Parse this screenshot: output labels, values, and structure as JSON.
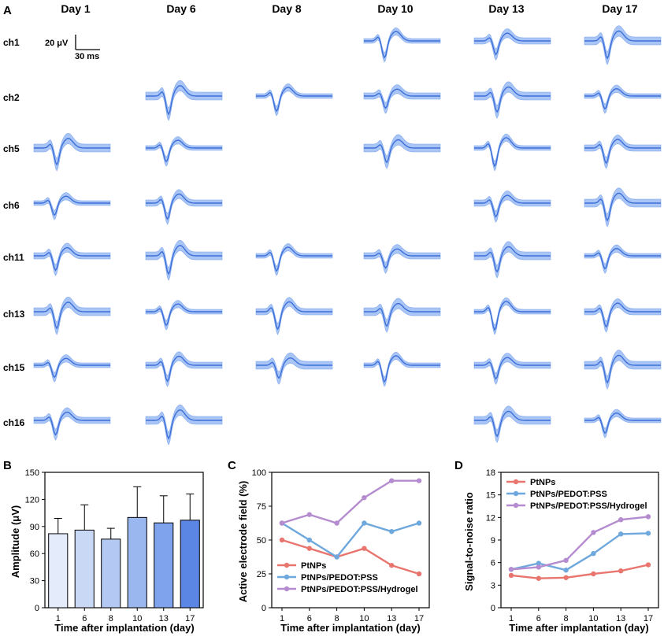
{
  "panel_letters": {
    "a": "A",
    "b": "B",
    "c": "C",
    "d": "D"
  },
  "colors": {
    "trace": "#3d6fd9",
    "band": "#a9c5f5",
    "band_edge": "#7ea6ee",
    "axis": "#000000",
    "pt": "#e9756f",
    "pedot": "#6fa8dc",
    "hydrogel": "#b48ccf",
    "bars": [
      "#e4ecfb",
      "#c9d8f5",
      "#b3c8f2",
      "#9ab7f0",
      "#7fa3ec",
      "#5b86e3"
    ]
  },
  "panel_a": {
    "days": [
      "Day 1",
      "Day 6",
      "Day 8",
      "Day 10",
      "Day 13",
      "Day 17"
    ],
    "channels": [
      "ch1",
      "ch2",
      "ch5",
      "ch6",
      "ch11",
      "ch13",
      "ch15",
      "ch16"
    ],
    "scalebar": {
      "amplitude_label": "20 μV",
      "time_label": "30 ms"
    },
    "waveforms": [
      [
        0,
        0,
        0,
        1,
        1,
        1
      ],
      [
        0,
        1,
        1,
        1,
        1,
        1
      ],
      [
        1,
        1,
        0,
        1,
        1,
        1
      ],
      [
        1,
        1,
        0,
        0,
        1,
        1
      ],
      [
        1,
        1,
        1,
        1,
        1,
        1
      ],
      [
        1,
        1,
        1,
        1,
        1,
        1
      ],
      [
        1,
        1,
        1,
        1,
        1,
        1
      ],
      [
        1,
        1,
        0,
        0,
        1,
        1
      ]
    ]
  },
  "chart_data": [
    {
      "panel": "B",
      "type": "bar",
      "title": "",
      "xlabel": "Time after implantation (day)",
      "ylabel": "Amplitude (μV)",
      "categories": [
        "1",
        "6",
        "8",
        "10",
        "13",
        "17"
      ],
      "values": [
        82,
        86,
        76,
        100,
        94,
        97
      ],
      "errors": [
        17,
        28,
        12,
        34,
        30,
        29
      ],
      "ylim": [
        0,
        150
      ],
      "yticks": [
        "0",
        "30",
        "60",
        "90",
        "120",
        "150"
      ]
    },
    {
      "panel": "C",
      "type": "line",
      "title": "",
      "xlabel": "Time after implantation (day)",
      "ylabel": "Active electrode field (%)",
      "categories": [
        "1",
        "6",
        "8",
        "10",
        "13",
        "17"
      ],
      "ylim": [
        0,
        100
      ],
      "yticks": [
        "0",
        "25",
        "50",
        "75",
        "100"
      ],
      "legend_position": "bottom-left",
      "series": [
        {
          "name": "PtNPs",
          "values": [
            50,
            43.8,
            37.5,
            43.8,
            31.3,
            25
          ]
        },
        {
          "name": "PtNPs/PEDOT:PSS",
          "values": [
            62.5,
            50,
            37.5,
            62.5,
            56.3,
            62.5
          ]
        },
        {
          "name": "PtNPs/PEDOT:PSS/Hydrogel",
          "values": [
            62.5,
            68.8,
            62.5,
            81.3,
            93.8,
            93.8
          ]
        }
      ]
    },
    {
      "panel": "D",
      "type": "line",
      "title": "",
      "xlabel": "Time after implantation (day)",
      "ylabel": "Signal-to-noise ratio",
      "categories": [
        "1",
        "6",
        "8",
        "10",
        "13",
        "17"
      ],
      "ylim": [
        0,
        18
      ],
      "yticks": [
        "0",
        "3",
        "6",
        "9",
        "12",
        "15",
        "18"
      ],
      "legend_position": "top-left",
      "series": [
        {
          "name": "PtNPs",
          "values": [
            4.3,
            3.9,
            4.0,
            4.5,
            4.9,
            5.7
          ]
        },
        {
          "name": "PtNPs/PEDOT:PSS",
          "values": [
            5.1,
            5.9,
            5.0,
            7.2,
            9.8,
            9.9
          ]
        },
        {
          "name": "PtNPs/PEDOT:PSS/Hydrogel",
          "values": [
            5.1,
            5.4,
            6.3,
            10.0,
            11.7,
            12.1
          ]
        }
      ]
    }
  ]
}
